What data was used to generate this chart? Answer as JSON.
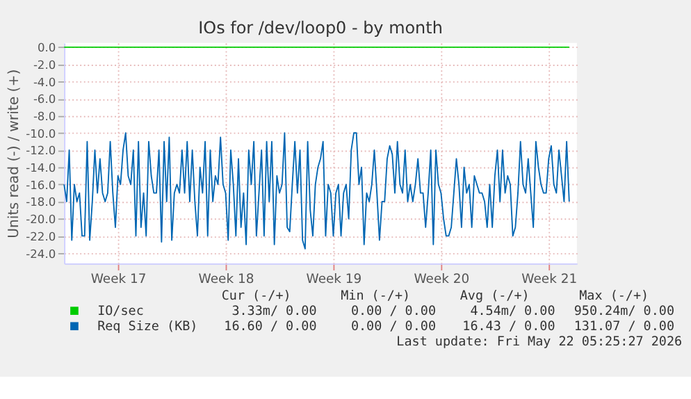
{
  "chart_data": {
    "type": "line",
    "title": "IOs for /dev/loop0 - by month",
    "ylabel": "Units read (-) / write (+)",
    "xlim": [
      "2026-04-20T00:00",
      "2026-05-23T08:00"
    ],
    "xticks": [
      {
        "value": "2026-04-23T12:00",
        "label": "Week 17"
      },
      {
        "value": "2026-04-30T12:00",
        "label": "Week 18"
      },
      {
        "value": "2026-05-07T12:00",
        "label": "Week 19"
      },
      {
        "value": "2026-05-14T12:00",
        "label": "Week 20"
      },
      {
        "value": "2026-05-21T12:00",
        "label": "Week 21"
      }
    ],
    "ylim": [
      -25.2,
      0.5
    ],
    "yticks": [
      {
        "value": 0,
        "label": "0.0"
      },
      {
        "value": -2,
        "label": "-2.0"
      },
      {
        "value": -4,
        "label": "-4.0"
      },
      {
        "value": -6,
        "label": "-6.0"
      },
      {
        "value": -8,
        "label": "-8.0"
      },
      {
        "value": -10,
        "label": "-10.0"
      },
      {
        "value": -12,
        "label": "-12.0"
      },
      {
        "value": -14,
        "label": "-14.0"
      },
      {
        "value": -16,
        "label": "-16.0"
      },
      {
        "value": -18,
        "label": "-18.0"
      },
      {
        "value": -20,
        "label": "-20.0"
      },
      {
        "value": -22,
        "label": "-22.0"
      },
      {
        "value": -24,
        "label": "-24.0"
      }
    ],
    "grid": true,
    "legend": "bottom",
    "series": [
      {
        "name": "IO/sec",
        "color": "#00cc00",
        "x": [
          "2026-04-20T00:00",
          "2026-05-22T20:00"
        ],
        "values": [
          0,
          0
        ]
      },
      {
        "name": "Req Size (KB)",
        "color": "#0066b3",
        "x": [
          "2026-04-20T00:00",
          "2026-04-20T04:00",
          "2026-04-20T08:00",
          "2026-04-20T12:00",
          "2026-04-20T16:00",
          "2026-04-20T20:00",
          "2026-04-21T00:00",
          "2026-04-21T04:00",
          "2026-04-21T08:00",
          "2026-04-21T12:00",
          "2026-04-21T16:00",
          "2026-04-21T20:00",
          "2026-04-22T00:00",
          "2026-04-22T04:00",
          "2026-04-22T08:00",
          "2026-04-22T12:00",
          "2026-04-22T16:00",
          "2026-04-22T20:00",
          "2026-04-23T00:00",
          "2026-04-23T04:00",
          "2026-04-23T08:00",
          "2026-04-23T12:00",
          "2026-04-23T16:00",
          "2026-04-23T20:00",
          "2026-04-24T00:00",
          "2026-04-24T04:00",
          "2026-04-24T08:00",
          "2026-04-24T12:00",
          "2026-04-24T16:00",
          "2026-04-24T20:00",
          "2026-04-25T00:00",
          "2026-04-25T04:00",
          "2026-04-25T08:00",
          "2026-04-25T12:00",
          "2026-04-25T16:00",
          "2026-04-25T20:00",
          "2026-04-26T00:00",
          "2026-04-26T04:00",
          "2026-04-26T08:00",
          "2026-04-26T12:00",
          "2026-04-26T16:00",
          "2026-04-26T20:00",
          "2026-04-27T00:00",
          "2026-04-27T04:00",
          "2026-04-27T08:00",
          "2026-04-27T12:00",
          "2026-04-27T16:00",
          "2026-04-27T20:00",
          "2026-04-28T00:00",
          "2026-04-28T04:00",
          "2026-04-28T08:00",
          "2026-04-28T12:00",
          "2026-04-28T16:00",
          "2026-04-28T20:00",
          "2026-04-29T00:00",
          "2026-04-29T04:00",
          "2026-04-29T08:00",
          "2026-04-29T12:00",
          "2026-04-29T16:00",
          "2026-04-29T20:00",
          "2026-04-30T00:00",
          "2026-04-30T04:00",
          "2026-04-30T08:00",
          "2026-04-30T12:00",
          "2026-04-30T16:00",
          "2026-04-30T20:00",
          "2026-05-01T00:00",
          "2026-05-01T04:00",
          "2026-05-01T08:00",
          "2026-05-01T12:00",
          "2026-05-01T16:00",
          "2026-05-01T20:00",
          "2026-05-02T00:00",
          "2026-05-02T04:00",
          "2026-05-02T08:00",
          "2026-05-02T12:00",
          "2026-05-02T16:00",
          "2026-05-02T20:00",
          "2026-05-03T00:00",
          "2026-05-03T04:00",
          "2026-05-03T08:00",
          "2026-05-03T12:00",
          "2026-05-03T16:00",
          "2026-05-03T20:00",
          "2026-05-04T00:00",
          "2026-05-04T04:00",
          "2026-05-04T08:00",
          "2026-05-04T12:00",
          "2026-05-04T16:00",
          "2026-05-04T20:00",
          "2026-05-05T00:00",
          "2026-05-05T04:00",
          "2026-05-05T08:00",
          "2026-05-05T12:00",
          "2026-05-05T16:00",
          "2026-05-05T20:00",
          "2026-05-06T00:00",
          "2026-05-06T04:00",
          "2026-05-06T08:00",
          "2026-05-06T12:00",
          "2026-05-06T16:00",
          "2026-05-06T20:00",
          "2026-05-07T00:00",
          "2026-05-07T04:00",
          "2026-05-07T08:00",
          "2026-05-07T12:00",
          "2026-05-07T16:00",
          "2026-05-07T20:00",
          "2026-05-08T00:00",
          "2026-05-08T04:00",
          "2026-05-08T08:00",
          "2026-05-08T12:00",
          "2026-05-08T16:00",
          "2026-05-08T20:00",
          "2026-05-09T00:00",
          "2026-05-09T04:00",
          "2026-05-09T08:00",
          "2026-05-09T12:00",
          "2026-05-09T16:00",
          "2026-05-09T20:00",
          "2026-05-10T00:00",
          "2026-05-10T04:00",
          "2026-05-10T08:00",
          "2026-05-10T12:00",
          "2026-05-10T16:00",
          "2026-05-10T20:00",
          "2026-05-11T00:00",
          "2026-05-11T04:00",
          "2026-05-11T08:00",
          "2026-05-11T12:00",
          "2026-05-11T16:00",
          "2026-05-11T20:00",
          "2026-05-12T00:00",
          "2026-05-12T04:00",
          "2026-05-12T08:00",
          "2026-05-12T12:00",
          "2026-05-12T16:00",
          "2026-05-12T20:00",
          "2026-05-13T00:00",
          "2026-05-13T04:00",
          "2026-05-13T08:00",
          "2026-05-13T12:00",
          "2026-05-13T16:00",
          "2026-05-13T20:00",
          "2026-05-14T00:00",
          "2026-05-14T04:00",
          "2026-05-14T08:00",
          "2026-05-14T12:00",
          "2026-05-14T16:00",
          "2026-05-14T20:00",
          "2026-05-15T00:00",
          "2026-05-15T04:00",
          "2026-05-15T08:00",
          "2026-05-15T12:00",
          "2026-05-15T16:00",
          "2026-05-15T20:00",
          "2026-05-16T00:00",
          "2026-05-16T04:00",
          "2026-05-16T08:00",
          "2026-05-16T12:00",
          "2026-05-16T16:00",
          "2026-05-16T20:00",
          "2026-05-17T00:00",
          "2026-05-17T04:00",
          "2026-05-17T08:00",
          "2026-05-17T12:00",
          "2026-05-17T16:00",
          "2026-05-17T20:00",
          "2026-05-18T00:00",
          "2026-05-18T04:00",
          "2026-05-18T08:00",
          "2026-05-18T12:00",
          "2026-05-18T16:00",
          "2026-05-18T20:00",
          "2026-05-19T00:00",
          "2026-05-19T04:00",
          "2026-05-19T08:00",
          "2026-05-19T12:00",
          "2026-05-19T16:00",
          "2026-05-19T20:00",
          "2026-05-20T00:00",
          "2026-05-20T04:00",
          "2026-05-20T08:00",
          "2026-05-20T12:00",
          "2026-05-20T16:00",
          "2026-05-20T20:00",
          "2026-05-21T00:00",
          "2026-05-21T04:00",
          "2026-05-21T08:00",
          "2026-05-21T12:00",
          "2026-05-21T16:00",
          "2026-05-21T20:00",
          "2026-05-22T00:00",
          "2026-05-22T04:00",
          "2026-05-22T08:00",
          "2026-05-22T12:00",
          "2026-05-22T16:00",
          "2026-05-22T20:00"
        ],
        "values": [
          -16,
          -18,
          -12,
          -22.5,
          -16,
          -18,
          -17,
          -22,
          -22,
          -11,
          -22.5,
          -18,
          -12,
          -17,
          -13,
          -17,
          -18,
          -17,
          -11,
          -17,
          -21,
          -15,
          -16,
          -12,
          -10,
          -15,
          -16,
          -12,
          -22,
          -11,
          -21,
          -17,
          -22,
          -11,
          -15,
          -17,
          -17,
          -12,
          -22.7,
          -11,
          -18,
          -10.5,
          -22.5,
          -17,
          -16,
          -17,
          -12,
          -17,
          -11,
          -18,
          -12,
          -18,
          -22,
          -14,
          -17,
          -11,
          -22,
          -12,
          -18,
          -15,
          -16,
          -10.5,
          -16,
          -17,
          -22.5,
          -12,
          -16,
          -22,
          -13,
          -21,
          -17,
          -23,
          -12,
          -16,
          -11,
          -22,
          -17,
          -12,
          -22,
          -11,
          -18,
          -11,
          -23,
          -15,
          -17,
          -16,
          -10,
          -21,
          -21.5,
          -16,
          -11,
          -17,
          -12,
          -22.5,
          -23.5,
          -11,
          -19,
          -22,
          -16,
          -14,
          -13,
          -11,
          -22,
          -16,
          -17,
          -22,
          -17,
          -16,
          -22,
          -17,
          -16,
          -20,
          -12,
          -10,
          -10,
          -16,
          -14,
          -23,
          -17,
          -18,
          -16,
          -12,
          -17,
          -22.5,
          -18,
          -18,
          -13,
          -11.5,
          -12.5,
          -17,
          -11,
          -16,
          -17,
          -12,
          -18,
          -16,
          -18,
          -16,
          -13,
          -17,
          -17,
          -21,
          -17,
          -12,
          -23,
          -12,
          -16,
          -17,
          -20,
          -22,
          -22,
          -21,
          -17,
          -13,
          -16,
          -21,
          -14,
          -17,
          -16,
          -21,
          -15,
          -16,
          -17,
          -17,
          -18,
          -21,
          -16,
          -21,
          -15,
          -12,
          -18,
          -12,
          -17,
          -15,
          -16,
          -22,
          -21,
          -17,
          -11,
          -16,
          -17,
          -13,
          -17,
          -21,
          -11,
          -14,
          -16,
          -17,
          -17,
          -13,
          -11.5,
          -16,
          -17,
          -12,
          -15,
          -18,
          -11,
          -18
        ]
      }
    ],
    "annotations": [
      "Cur (-/+)",
      "Min (-/+)",
      "Avg (-/+)",
      "Max (-/+)",
      "3.33m/ 0.00",
      "0.00 / 0.00",
      "4.54m/ 0.00",
      "950.24m/ 0.00",
      "16.60 / 0.00",
      "0.00 / 0.00",
      "16.43 / 0.00",
      "131.07 / 0.00",
      "Last update: Fri May 22 05:25:27 2026"
    ]
  }
}
